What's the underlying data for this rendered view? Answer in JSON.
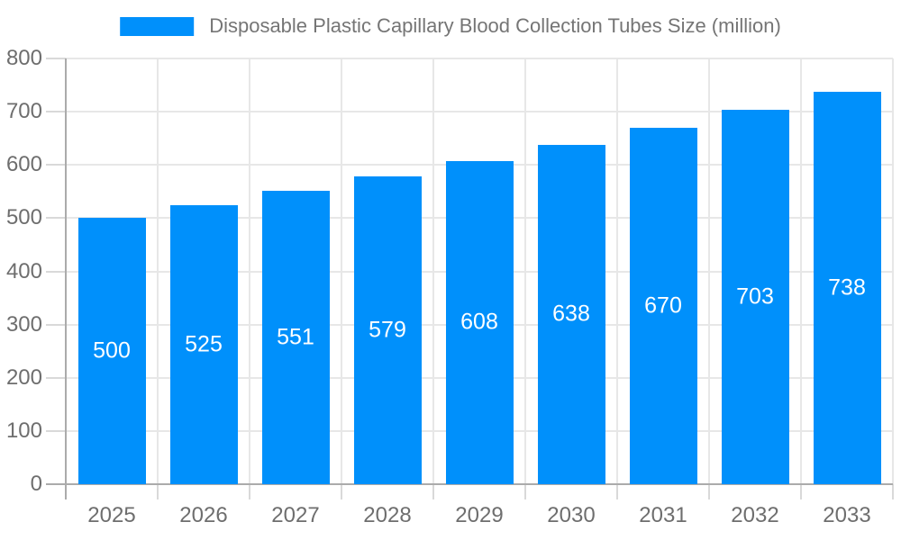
{
  "legend": {
    "label": "Disposable Plastic Capillary Blood Collection Tubes Size (million)"
  },
  "chart_data": {
    "type": "bar",
    "title": "Disposable Plastic Capillary Blood Collection Tubes Size (million)",
    "categories": [
      "2025",
      "2026",
      "2027",
      "2028",
      "2029",
      "2030",
      "2031",
      "2032",
      "2033"
    ],
    "values": [
      500,
      525,
      551,
      579,
      608,
      638,
      670,
      703,
      738
    ],
    "series": [
      {
        "name": "Disposable Plastic Capillary Blood Collection Tubes Size (million)",
        "values": [
          500,
          525,
          551,
          579,
          608,
          638,
          670,
          703,
          738
        ]
      }
    ],
    "xlabel": "",
    "ylabel": "",
    "ylim": [
      0,
      800
    ],
    "yticks": [
      0,
      100,
      200,
      300,
      400,
      500,
      600,
      700,
      800
    ],
    "grid": {
      "horizontal": true,
      "vertical": true
    },
    "legend_position": "top",
    "value_labels": "inside-center",
    "colors": {
      "bar": "#0090fb",
      "grid": "#e7e7e7",
      "axis": "#ababab",
      "tick": "#d9d9d9",
      "axis_text": "#6e6e6e",
      "legend_text": "#757575",
      "value_label": "#ffffff",
      "background": "#ffffff"
    }
  }
}
